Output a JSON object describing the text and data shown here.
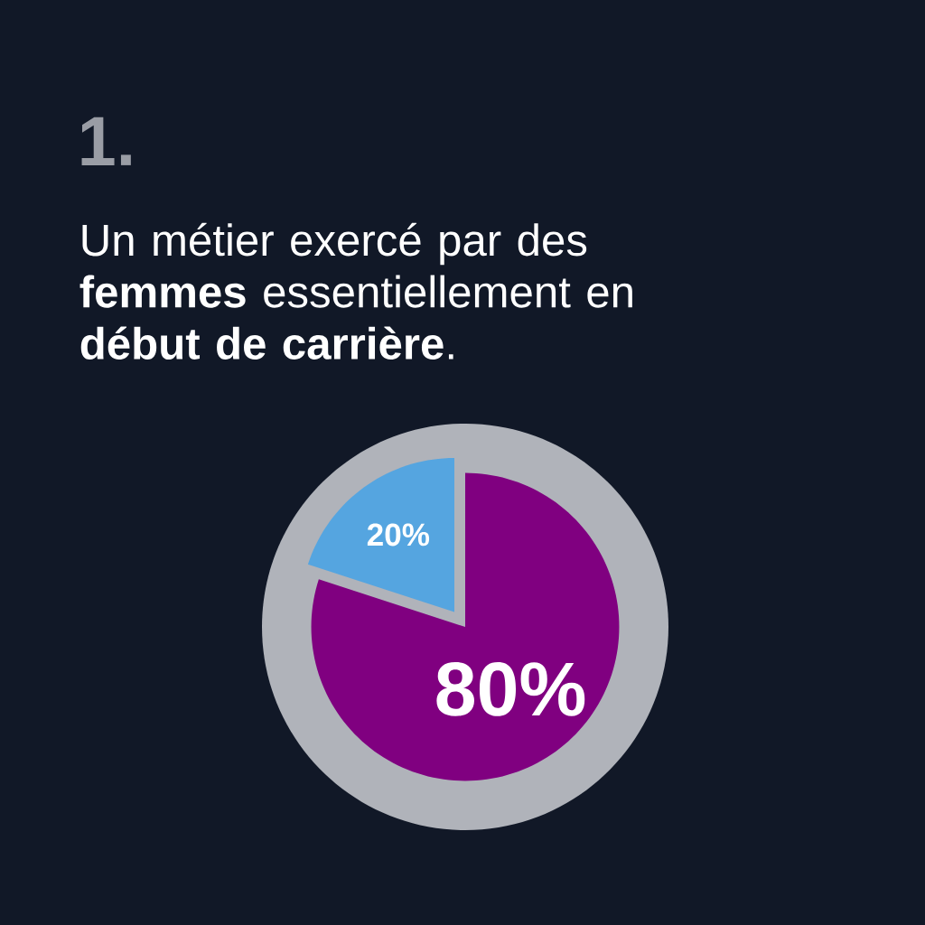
{
  "chart_data": {
    "type": "pie",
    "title": "1.",
    "subtitle": "Un métier exercé par des **femmes** essentiellement en **début de carrière**.",
    "categories": [
      null,
      null
    ],
    "values": [
      80,
      20
    ],
    "colors": [
      "#800080",
      "#55a5e0"
    ],
    "value_labels": [
      "80%",
      "20%"
    ]
  }
}
